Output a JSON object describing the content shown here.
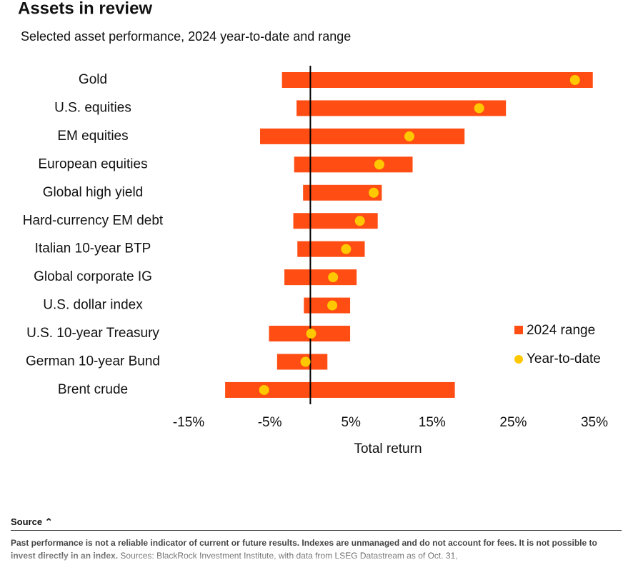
{
  "chart_data": {
    "type": "range-dot",
    "title": "Assets in review",
    "subtitle": "Selected asset performance, 2024 year-to-date and range",
    "x_label": "Total return",
    "categories": [
      "Gold",
      "U.S. equities",
      "EM equities",
      "European equities",
      "Global high yield",
      "Hard-currency EM debt",
      "Italian 10-year BTP",
      "Global corporate IG",
      "U.S. dollar index",
      "U.S. 10-year Treasury",
      "German 10-year Bund",
      "Brent crude"
    ],
    "series": [
      {
        "name": "2024 range",
        "color": "#ff4d13",
        "low": [
          -3.5,
          -1.7,
          -6.2,
          -2.0,
          -0.9,
          -2.1,
          -1.6,
          -3.2,
          -0.8,
          -5.1,
          -4.1,
          -10.5
        ],
        "high": [
          34.8,
          24.1,
          19.0,
          12.6,
          8.8,
          8.3,
          6.7,
          5.7,
          4.9,
          4.9,
          2.1,
          17.8
        ]
      },
      {
        "name": "Year-to-date",
        "color": "#ffc800",
        "values": [
          32.6,
          20.8,
          12.2,
          8.5,
          7.8,
          6.1,
          4.4,
          2.8,
          2.7,
          0.1,
          -0.6,
          -5.7
        ]
      }
    ],
    "xlim": [
      -15,
      35
    ],
    "xticks": [
      {
        "value": -15,
        "label": "-15%"
      },
      {
        "value": -5,
        "label": "-5%"
      },
      {
        "value": 5,
        "label": "5%"
      },
      {
        "value": 15,
        "label": "15%"
      },
      {
        "value": 25,
        "label": "25%"
      },
      {
        "value": 35,
        "label": "35%"
      }
    ],
    "legend": "right"
  },
  "footer": {
    "source_label": "Source",
    "disclaimer": "Past performance is not a reliable indicator of current or future results. Indexes are unmanaged and do not account for fees. It is not possible to invest directly in an index.",
    "sources": "Sources: BlackRock Investment Institute, with data from LSEG Datastream as of Oct. 31,"
  }
}
